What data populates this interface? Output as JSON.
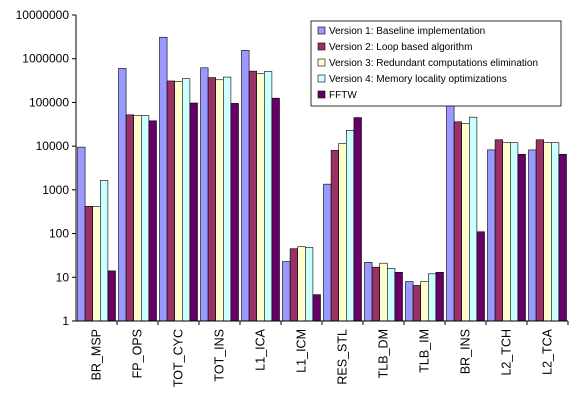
{
  "chart_data": {
    "type": "bar",
    "y_scale": "log",
    "ylim": [
      1,
      10000000
    ],
    "y_ticks": [
      1,
      10,
      100,
      1000,
      10000,
      100000,
      1000000,
      10000000
    ],
    "y_tick_labels": [
      "1",
      "10",
      "100",
      "1000",
      "10000",
      "100000",
      "1000000",
      "10000000"
    ],
    "grid": false,
    "legend_position": "top-right",
    "categories": [
      "BR_MSP",
      "FP_OPS",
      "TOT_CYC",
      "TOT_INS",
      "L1_ICA",
      "L1_ICM",
      "RES_STL",
      "TLB_DM",
      "TLB_IM",
      "BR_INS",
      "L2_TCH",
      "L2_TCA"
    ],
    "series": [
      {
        "name": "Version 1: Baseline implementation",
        "color": "#9999ff",
        "values": [
          9500,
          600000,
          3100000,
          620000,
          1550000,
          23,
          1350,
          22,
          8,
          95000,
          8200,
          8200
        ]
      },
      {
        "name": "Version 2: Loop based algorithm",
        "color": "#993366",
        "values": [
          420,
          52000,
          310000,
          370000,
          520000,
          45,
          8000,
          17,
          6.5,
          36000,
          14000,
          14000
        ]
      },
      {
        "name": "Version 3: Redundant computations elimination",
        "color": "#ffffcc",
        "values": [
          420,
          50000,
          300000,
          330000,
          460000,
          50,
          11500,
          21,
          8,
          33000,
          12000,
          12000
        ]
      },
      {
        "name": "Version 4: Memory locality optimizations",
        "color": "#ccffff",
        "values": [
          1650,
          50000,
          350000,
          380000,
          510000,
          48,
          23000,
          16,
          12,
          46000,
          12000,
          12000
        ]
      },
      {
        "name": "FFTW",
        "color": "#660066",
        "values": [
          14,
          38000,
          97000,
          95000,
          125000,
          4,
          45000,
          13,
          13,
          110,
          6500,
          6500
        ]
      }
    ]
  }
}
